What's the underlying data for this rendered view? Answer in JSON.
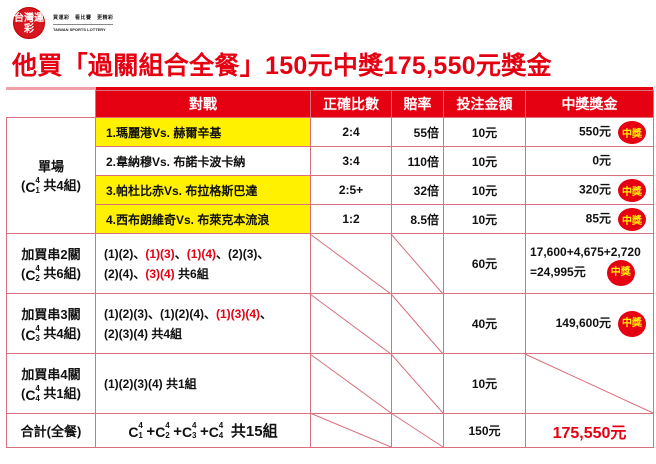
{
  "logo": {
    "text": "台灣運彩",
    "slogan": "買運彩　看比賽　更精彩",
    "brand": "TAIWAN SPORTS LOTTERY"
  },
  "title": "他買「過關組合全餐」150元中獎175,550元獎金",
  "colors": {
    "accent": "#e50012",
    "highlight": "#fff100",
    "grid": "#d9707e"
  },
  "headers": [
    "對戰",
    "正確比數",
    "賠率",
    "投注金額",
    "中獎獎金"
  ],
  "single": {
    "label": "單場",
    "combo": {
      "n": "4",
      "k": "1"
    },
    "suffix": "共4組)",
    "open": "("
  },
  "badge_label": "中獎",
  "matches": [
    {
      "match": "1.瑪麗港Vs. 赫爾辛基",
      "score": "2:4",
      "odds": "55倍",
      "stake": "10元",
      "prize": "550元",
      "won": true,
      "highlight": true
    },
    {
      "match": "2.韋納穆Vs. 布諾卡波卡納",
      "score": "3:4",
      "odds": "110倍",
      "stake": "10元",
      "prize": "0元",
      "won": false,
      "highlight": false
    },
    {
      "match": "3.帕杜比赤Vs. 布拉格斯巴達",
      "score": "2:5+",
      "odds": "32倍",
      "stake": "10元",
      "prize": "320元",
      "won": true,
      "highlight": true
    },
    {
      "match": "4.西布朗維奇Vs. 布萊克本流浪",
      "score": "1:2",
      "odds": "8.5倍",
      "stake": "10元",
      "prize": "85元",
      "won": true,
      "highlight": true
    }
  ],
  "parlays": [
    {
      "label": "加買串2關",
      "combo": {
        "n": "4",
        "k": "2"
      },
      "suffix": "共6組)",
      "line1": [
        [
          "(1)(2)、",
          false
        ],
        [
          "(1)(3)",
          true
        ],
        [
          "、",
          false
        ],
        [
          "(1)(4)",
          true
        ],
        [
          "、(2)(3)、",
          false
        ]
      ],
      "line2": [
        [
          "(2)(4)、",
          false
        ],
        [
          "(3)(4)",
          true
        ],
        [
          " 共6組",
          false
        ]
      ],
      "stake": "60元",
      "prize_line1": "17,600+4,675+2,720",
      "prize_line2": "=24,995元",
      "won": true
    },
    {
      "label": "加買串3關",
      "combo": {
        "n": "4",
        "k": "3"
      },
      "suffix": "共4組)",
      "line1": [
        [
          "(1)(2)(3)、(1)(2)(4)、",
          false
        ],
        [
          "(1)(3)(4)",
          true
        ],
        [
          "、",
          false
        ]
      ],
      "line2": [
        [
          "(2)(3)(4) 共4組",
          false
        ]
      ],
      "stake": "40元",
      "prize_line1": "149,600元",
      "won": true
    },
    {
      "label": "加買串4關",
      "combo": {
        "n": "4",
        "k": "4"
      },
      "suffix": "共1組)",
      "line1": [
        [
          "(1)(2)(3)(4) 共1組",
          false
        ]
      ],
      "stake": "10元",
      "won": false
    }
  ],
  "total": {
    "label": "合計(全餐)",
    "formula_parts": [
      "1",
      "+",
      "2",
      "+",
      "3",
      "+",
      "4"
    ],
    "n": "4",
    "suffix": "共15組",
    "stake": "150元",
    "prize": "175,550元"
  }
}
